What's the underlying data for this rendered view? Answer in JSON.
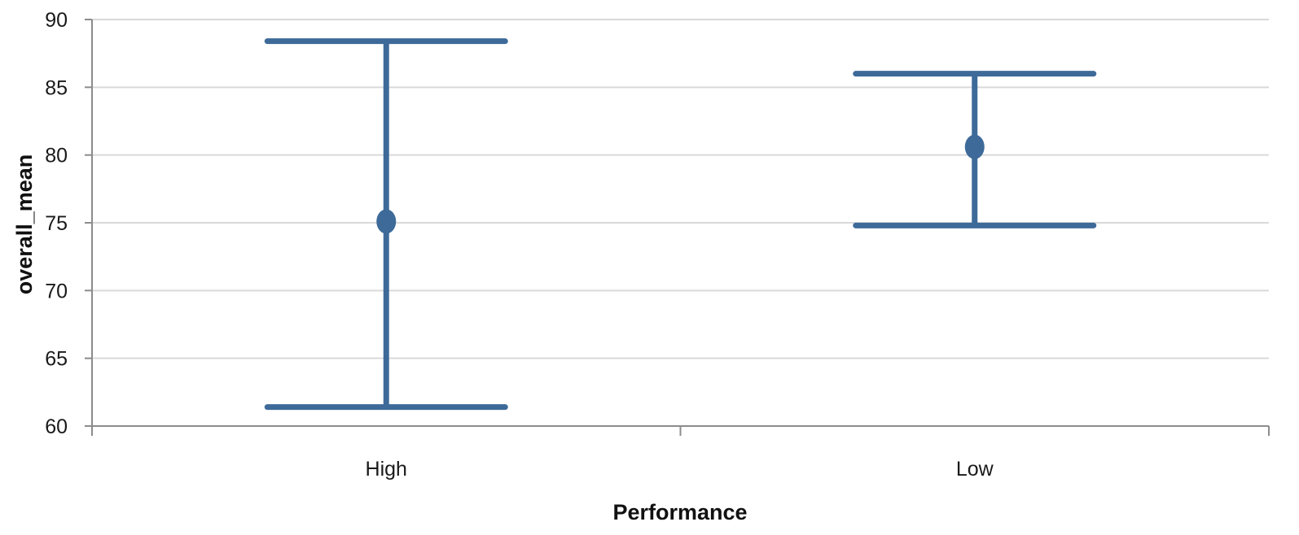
{
  "chart_data": {
    "type": "errorbar",
    "categories": [
      "High",
      "Low"
    ],
    "series": [
      {
        "mean": [
          75.1,
          80.6
        ],
        "lower": [
          61.4,
          74.8
        ],
        "upper": [
          88.4,
          86.0
        ]
      }
    ],
    "xlabel": "Performance",
    "ylabel": "overall_mean",
    "ylim": [
      60,
      90
    ],
    "yticks": [
      60,
      65,
      70,
      75,
      80,
      85,
      90
    ],
    "grid": true,
    "colors": {
      "series": "#3d6a99",
      "grid": "#d9d9d9",
      "axis": "#8c8c8c"
    }
  }
}
